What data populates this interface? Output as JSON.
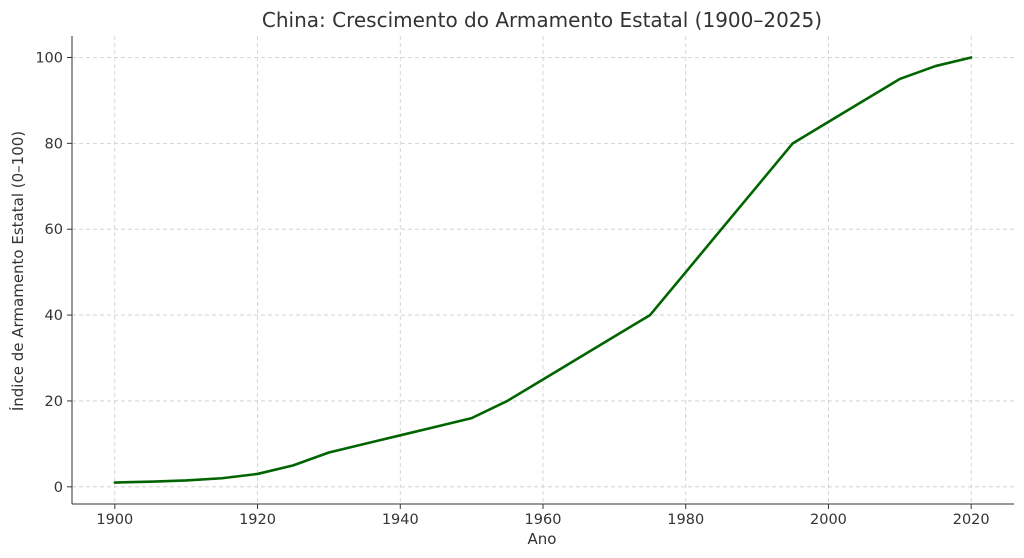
{
  "chart_data": {
    "type": "line",
    "title": "China: Crescimento do Armamento Estatal (1900–2025)",
    "xlabel": "Ano",
    "ylabel": "Índice de Armamento Estatal (0–100)",
    "xlim": [
      1894,
      2026
    ],
    "ylim": [
      -4,
      105
    ],
    "x_ticks": [
      1900,
      1920,
      1940,
      1960,
      1980,
      2000,
      2020
    ],
    "y_ticks": [
      0,
      20,
      40,
      60,
      80,
      100
    ],
    "grid": true,
    "series": [
      {
        "color": "#006400",
        "points": [
          [
            1900,
            1
          ],
          [
            1905,
            1.2
          ],
          [
            1910,
            1.5
          ],
          [
            1915,
            2
          ],
          [
            1920,
            3
          ],
          [
            1925,
            5
          ],
          [
            1930,
            8
          ],
          [
            1935,
            10
          ],
          [
            1940,
            12
          ],
          [
            1945,
            14
          ],
          [
            1950,
            16
          ],
          [
            1955,
            20
          ],
          [
            1960,
            25
          ],
          [
            1965,
            30
          ],
          [
            1970,
            35
          ],
          [
            1975,
            40
          ],
          [
            1980,
            50
          ],
          [
            1985,
            60
          ],
          [
            1990,
            70
          ],
          [
            1995,
            80
          ],
          [
            2000,
            85
          ],
          [
            2005,
            90
          ],
          [
            2010,
            95
          ],
          [
            2015,
            98
          ],
          [
            2020,
            100
          ]
        ]
      }
    ]
  }
}
